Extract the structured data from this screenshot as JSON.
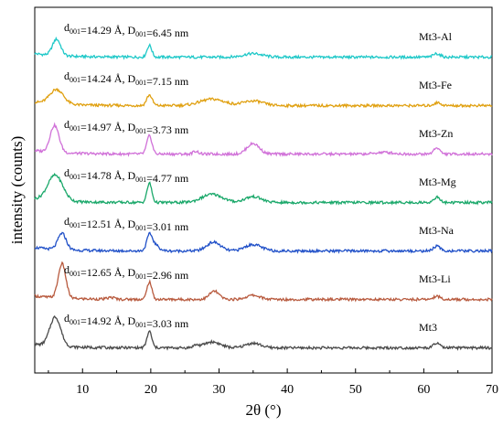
{
  "chart_data": {
    "type": "line",
    "xlabel": "2θ (°)",
    "ylabel": "intensity (counts)",
    "xlim": [
      3,
      70
    ],
    "xticks": [
      "10",
      "20",
      "30",
      "40",
      "50",
      "60",
      "70"
    ],
    "grid": false,
    "series": [
      {
        "name": "Mt3-Al",
        "color": "#1ec8c8",
        "annotation": {
          "d": "14.29 Å",
          "D": "6.45 nm"
        },
        "baseline": 0.93,
        "peaks": [
          [
            6.2,
            0.56,
            0.6
          ],
          [
            19.8,
            0.4,
            0.35
          ],
          [
            35.0,
            0.12,
            1.4
          ],
          [
            61.9,
            0.12,
            0.5
          ]
        ]
      },
      {
        "name": "Mt3-Fe",
        "color": "#e0a010",
        "annotation": {
          "d": "14.24 Å",
          "D": "7.15 nm"
        },
        "baseline": 0.92,
        "peaks": [
          [
            6.2,
            0.5,
            1.0
          ],
          [
            19.8,
            0.36,
            0.4
          ],
          [
            29.0,
            0.22,
            1.8
          ],
          [
            35.0,
            0.16,
            1.4
          ],
          [
            62.0,
            0.1,
            0.5
          ]
        ]
      },
      {
        "name": "Mt3-Zn",
        "color": "#d070d8",
        "annotation": {
          "d": "14.97 Å",
          "D": "3.73 nm"
        },
        "baseline": 0.92,
        "peaks": [
          [
            5.9,
            0.92,
            0.65
          ],
          [
            19.8,
            0.62,
            0.38
          ],
          [
            26.6,
            0.1,
            0.4
          ],
          [
            35.0,
            0.36,
            0.9
          ],
          [
            54.2,
            0.06,
            1.2
          ],
          [
            61.9,
            0.22,
            0.45
          ]
        ]
      },
      {
        "name": "Mt3-Mg",
        "color": "#1aa86a",
        "annotation": {
          "d": "14.78 Å",
          "D": "4.77 nm"
        },
        "baseline": 0.92,
        "peaks": [
          [
            6.0,
            0.88,
            1.1
          ],
          [
            19.8,
            0.66,
            0.35
          ],
          [
            29.0,
            0.28,
            1.5
          ],
          [
            35.0,
            0.2,
            1.2
          ],
          [
            61.9,
            0.18,
            0.45
          ]
        ]
      },
      {
        "name": "Mt3-Na",
        "color": "#2050c8",
        "annotation": {
          "d": "12.51 Å",
          "D": "3.01 nm"
        },
        "baseline": 0.93,
        "peaks": [
          [
            7.0,
            0.56,
            0.6
          ],
          [
            19.8,
            0.5,
            0.4
          ],
          [
            20.6,
            0.2,
            0.6
          ],
          [
            29.2,
            0.3,
            1.0
          ],
          [
            35.0,
            0.22,
            1.2
          ],
          [
            61.9,
            0.16,
            0.5
          ]
        ]
      },
      {
        "name": "Mt3-Li",
        "color": "#b85a3e",
        "annotation": {
          "d": "12.65 Å",
          "D": "2.96 nm"
        },
        "baseline": 0.93,
        "peaks": [
          [
            7.0,
            1.18,
            0.55
          ],
          [
            14.2,
            0.06,
            0.5
          ],
          [
            19.8,
            0.6,
            0.35
          ],
          [
            29.3,
            0.28,
            0.7
          ],
          [
            35.0,
            0.14,
            1.0
          ],
          [
            61.9,
            0.12,
            0.45
          ]
        ]
      },
      {
        "name": "Mt3",
        "color": "#4a4a4a",
        "annotation": {
          "d": "14.92 Å",
          "D": "3.03 nm"
        },
        "baseline": 0.93,
        "peaks": [
          [
            6.0,
            1.0,
            0.8
          ],
          [
            19.8,
            0.56,
            0.35
          ],
          [
            26.6,
            0.08,
            0.4
          ],
          [
            29.0,
            0.2,
            1.2
          ],
          [
            35.0,
            0.16,
            1.1
          ],
          [
            61.9,
            0.16,
            0.45
          ]
        ]
      }
    ]
  }
}
